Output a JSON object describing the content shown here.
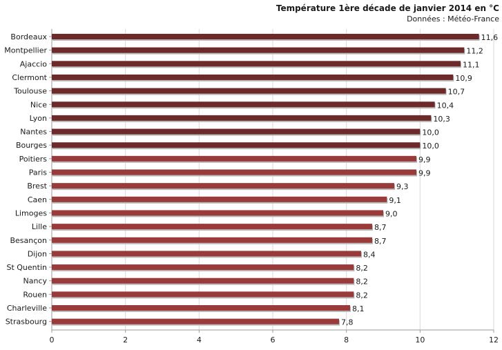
{
  "chart_data": {
    "type": "bar",
    "orientation": "horizontal",
    "title": "Température 1ère décade de janvier 2014 en °C",
    "subtitle": "Données : Météo-France",
    "xlim": [
      0,
      12
    ],
    "xticks": [
      "0",
      "2",
      "4",
      "6",
      "8",
      "10",
      "12"
    ],
    "grid": true,
    "categories": [
      "Bordeaux",
      "Montpellier",
      "Ajaccio",
      "Clermont",
      "Toulouse",
      "Nice",
      "Lyon",
      "Nantes",
      "Bourges",
      "Poitiers",
      "Paris",
      "Brest",
      "Caen",
      "Limoges",
      "Lille",
      "Besançon",
      "Dijon",
      "St Quentin",
      "Nancy",
      "Rouen",
      "Charleville",
      "Strasbourg"
    ],
    "values": [
      11.6,
      11.2,
      11.1,
      10.9,
      10.7,
      10.4,
      10.3,
      10.0,
      10.0,
      9.9,
      9.9,
      9.3,
      9.1,
      9.0,
      8.7,
      8.7,
      8.4,
      8.2,
      8.2,
      8.2,
      8.1,
      7.8
    ],
    "labels": [
      "11,6",
      "11,2",
      "11,1",
      "10,9",
      "10,7",
      "10,4",
      "10,3",
      "10,0",
      "10,0",
      "9,9",
      "9,9",
      "9,3",
      "9,1",
      "9,0",
      "8,7",
      "8,7",
      "8,4",
      "8,2",
      "8,2",
      "8,2",
      "8,1",
      "7,8"
    ],
    "colors": {
      "high": "#6e2a2a",
      "low": "#9a3b3b",
      "shadow": "#b8b8b8",
      "grid": "#d9d9d9",
      "axis": "#999999"
    },
    "high_threshold": 10
  }
}
